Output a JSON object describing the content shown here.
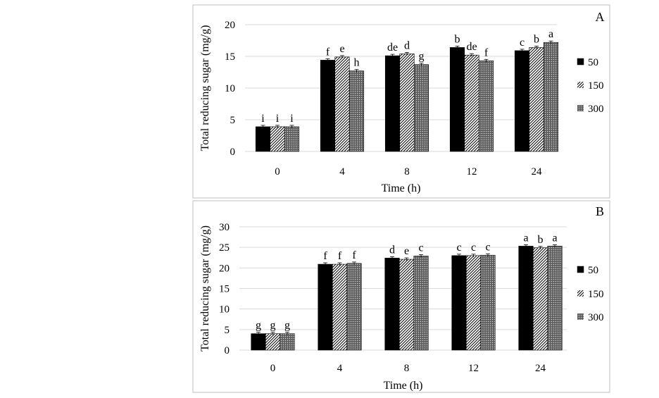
{
  "chart_data": [
    {
      "type": "bar",
      "panel_label": "A",
      "categories": [
        "0",
        "4",
        "8",
        "12",
        "24"
      ],
      "xlabel": "Time (h)",
      "ylabel": "Total reducing sugar (mg/g)",
      "ylim": [
        0,
        20
      ],
      "yticks": [
        0,
        5,
        10,
        15,
        20
      ],
      "grid": true,
      "legend_position": "right",
      "series": [
        {
          "name": "50",
          "pattern": "solid",
          "values": [
            3.9,
            14.4,
            15.1,
            16.4,
            15.9
          ],
          "labels": [
            "i",
            "f",
            "de",
            "b",
            "c"
          ]
        },
        {
          "name": "150",
          "pattern": "diagonal",
          "values": [
            3.9,
            14.9,
            15.4,
            15.2,
            16.4
          ],
          "labels": [
            "i",
            "e",
            "d",
            "de",
            "b"
          ]
        },
        {
          "name": "300",
          "pattern": "dots",
          "values": [
            3.9,
            12.7,
            13.7,
            14.3,
            17.2
          ],
          "labels": [
            "i",
            "h",
            "g",
            "f",
            "a"
          ]
        }
      ]
    },
    {
      "type": "bar",
      "panel_label": "B",
      "categories": [
        "0",
        "4",
        "8",
        "12",
        "24"
      ],
      "xlabel": "Time (h)",
      "ylabel": "Total reducing sugar (mg/g)",
      "ylim": [
        0,
        30
      ],
      "yticks": [
        0,
        5,
        10,
        15,
        20,
        25,
        30
      ],
      "grid": true,
      "legend_position": "right",
      "series": [
        {
          "name": "50",
          "pattern": "solid",
          "values": [
            4.0,
            20.9,
            22.4,
            23.0,
            25.3
          ],
          "labels": [
            "g",
            "f",
            "d",
            "c",
            "a"
          ]
        },
        {
          "name": "150",
          "pattern": "diagonal",
          "values": [
            4.0,
            20.9,
            22.1,
            23.0,
            24.9
          ],
          "labels": [
            "g",
            "f",
            "e",
            "c",
            "b"
          ]
        },
        {
          "name": "300",
          "pattern": "dots",
          "values": [
            4.0,
            21.1,
            22.9,
            23.1,
            25.3
          ],
          "labels": [
            "g",
            "f",
            "c",
            "c",
            "a"
          ]
        }
      ]
    }
  ]
}
